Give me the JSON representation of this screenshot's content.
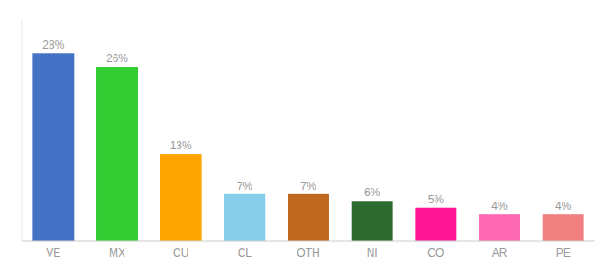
{
  "chart_data": {
    "type": "bar",
    "categories": [
      "VE",
      "MX",
      "CU",
      "CL",
      "OTH",
      "NI",
      "CO",
      "AR",
      "PE"
    ],
    "values": [
      28,
      26,
      13,
      7,
      7,
      6,
      5,
      4,
      4
    ],
    "value_labels": [
      "28%",
      "26%",
      "13%",
      "7%",
      "7%",
      "6%",
      "5%",
      "4%",
      "4%"
    ],
    "colors": [
      "#4472C4",
      "#33CC33",
      "#FFA500",
      "#87CEEB",
      "#C06820",
      "#2D6A2D",
      "#FF1493",
      "#FF69B4",
      "#F08080"
    ],
    "ylim": [
      0,
      33
    ],
    "data_labels": true,
    "tick_labels": "x",
    "grid": false
  }
}
